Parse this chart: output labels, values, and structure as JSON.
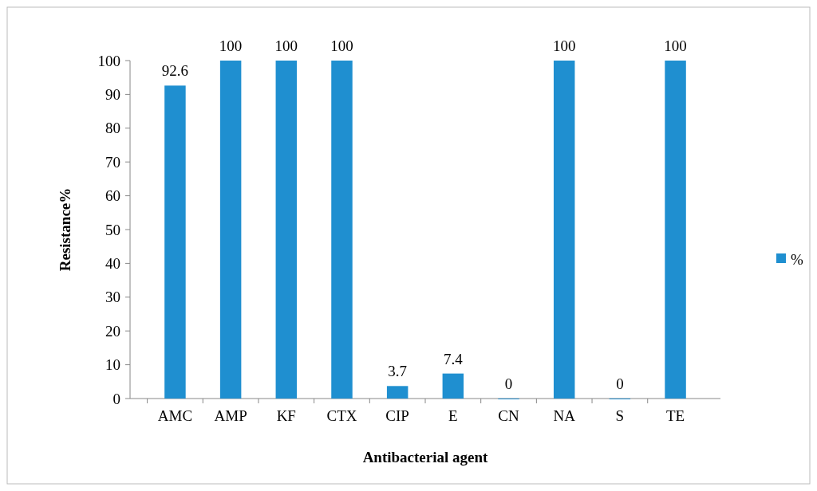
{
  "chart_data": {
    "type": "bar",
    "xlabel": "Antibacterial agent",
    "ylabel": "Resistance%",
    "categories": [
      "AMC",
      "AMP",
      "KF",
      "CTX",
      "CIP",
      "E",
      "CN",
      "NA",
      "S",
      "TE"
    ],
    "series": [
      {
        "name": "%",
        "color": "#1f8fd0",
        "values": [
          92.6,
          100,
          100,
          100,
          3.7,
          7.4,
          0,
          100,
          0,
          100
        ]
      }
    ],
    "ylim": [
      0,
      100
    ],
    "yticks": [
      0,
      10,
      20,
      30,
      40,
      50,
      60,
      70,
      80,
      90,
      100
    ],
    "data_labels": true,
    "legend": "right",
    "grid": false
  }
}
